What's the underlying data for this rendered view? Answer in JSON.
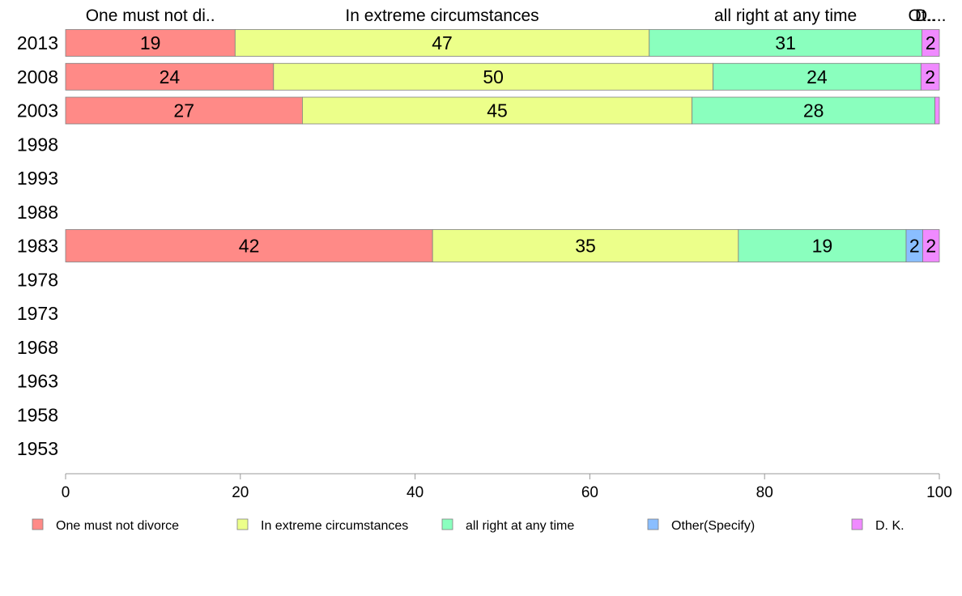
{
  "chart_data": {
    "type": "bar",
    "orientation": "horizontal",
    "stacked": true,
    "categories": [
      "2013",
      "2008",
      "2003",
      "1998",
      "1993",
      "1988",
      "1983",
      "1978",
      "1973",
      "1968",
      "1963",
      "1958",
      "1953"
    ],
    "series": [
      {
        "name": "One must not divorce",
        "color": "#FF8A87",
        "values": [
          19.4,
          23.8,
          27.1,
          null,
          null,
          null,
          42.0,
          null,
          null,
          null,
          null,
          null,
          null
        ],
        "labels": [
          "19",
          "24",
          "27",
          "",
          "",
          "",
          "42",
          "",
          "",
          "",
          "",
          "",
          ""
        ]
      },
      {
        "name": "In extreme circumstances",
        "color": "#ECFF8A",
        "values": [
          47.4,
          50.3,
          44.6,
          null,
          null,
          null,
          35.0,
          null,
          null,
          null,
          null,
          null,
          null
        ],
        "labels": [
          "47",
          "50",
          "45",
          "",
          "",
          "",
          "35",
          "",
          "",
          "",
          "",
          "",
          ""
        ]
      },
      {
        "name": "all right at any time",
        "color": "#8AFFBE",
        "values": [
          31.2,
          23.8,
          27.8,
          null,
          null,
          null,
          19.2,
          null,
          null,
          null,
          null,
          null,
          null
        ],
        "labels": [
          "31",
          "24",
          "28",
          "",
          "",
          "",
          "19",
          "",
          "",
          "",
          "",
          "",
          ""
        ]
      },
      {
        "name": "Other(Specify)",
        "color": "#8ABEFF",
        "values": [
          0,
          0,
          0,
          null,
          null,
          null,
          1.9,
          null,
          null,
          null,
          null,
          null,
          null
        ],
        "labels": [
          "",
          "",
          "",
          "",
          "",
          "",
          "2",
          "",
          "",
          "",
          "",
          "",
          ""
        ]
      },
      {
        "name": "D. K.",
        "color": "#F08AFF",
        "values": [
          2.0,
          2.1,
          0.5,
          null,
          null,
          null,
          1.9,
          null,
          null,
          null,
          null,
          null,
          null
        ],
        "labels": [
          "2",
          "2",
          "",
          "",
          "",
          "",
          "2",
          "",
          "",
          "",
          "",
          "",
          ""
        ]
      }
    ],
    "top_labels": [
      "One must not di..",
      "In extreme circumstances",
      "all right at any time",
      "Ot..",
      "D...."
    ],
    "xlim": [
      0,
      100
    ],
    "xticks": [
      "0",
      "20",
      "40",
      "60",
      "80",
      "100"
    ],
    "grid": false,
    "legend_position": "bottom"
  }
}
